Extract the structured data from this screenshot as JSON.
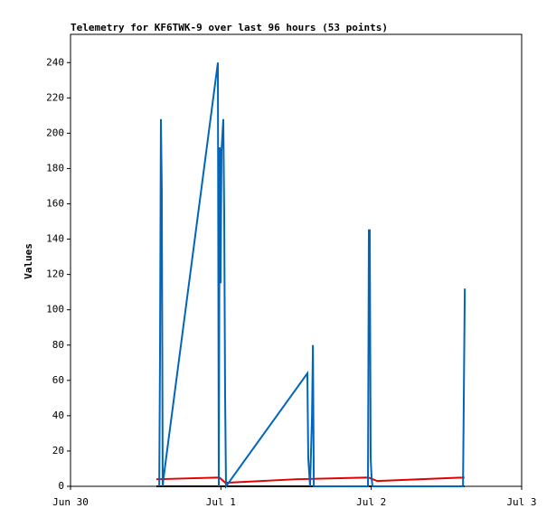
{
  "chart_data": {
    "type": "line",
    "title": "Telemetry for KF6TWK-9 over last 96 hours (53 points)",
    "y_label": "Values",
    "xlim": [
      0,
      3
    ],
    "xticks": [
      {
        "value": 0,
        "label": "Jun 30"
      },
      {
        "value": 1,
        "label": "Jul 1"
      },
      {
        "value": 2,
        "label": "Jul 2"
      },
      {
        "value": 3,
        "label": "Jul 3"
      }
    ],
    "ylim": [
      0,
      256
    ],
    "yticks": [
      0,
      20,
      40,
      60,
      80,
      100,
      120,
      140,
      160,
      180,
      200,
      220,
      240
    ],
    "series": [
      {
        "color": "#000000",
        "x": [
          0.571,
          2.62
        ],
        "values": [
          0,
          0
        ]
      },
      {
        "color": "#e00000",
        "x": [
          0.571,
          0.99,
          1.03,
          1.5,
          1.98,
          2.04,
          2.62
        ],
        "values": [
          4,
          5,
          2,
          4,
          5,
          3,
          5
        ]
      },
      {
        "color": "#0066bb",
        "x": [
          0.59,
          0.595,
          0.601,
          0.607,
          0.613,
          0.619,
          0.98,
          0.986,
          0.992,
          0.998,
          1.004,
          1.016,
          1.022,
          1.028,
          1.034,
          1.575,
          1.581,
          1.593,
          1.606,
          1.612,
          1.618,
          1.978,
          1.984,
          1.99,
          1.996,
          2.002,
          2.008,
          2.61,
          2.616,
          2.622
        ],
        "values": [
          0,
          72,
          208,
          168,
          0,
          5,
          240,
          0,
          192,
          115,
          190,
          208,
          155,
          52,
          0,
          64,
          16,
          0,
          40,
          80,
          0,
          0,
          145,
          145,
          16,
          5,
          0,
          0,
          56,
          112
        ]
      }
    ]
  }
}
